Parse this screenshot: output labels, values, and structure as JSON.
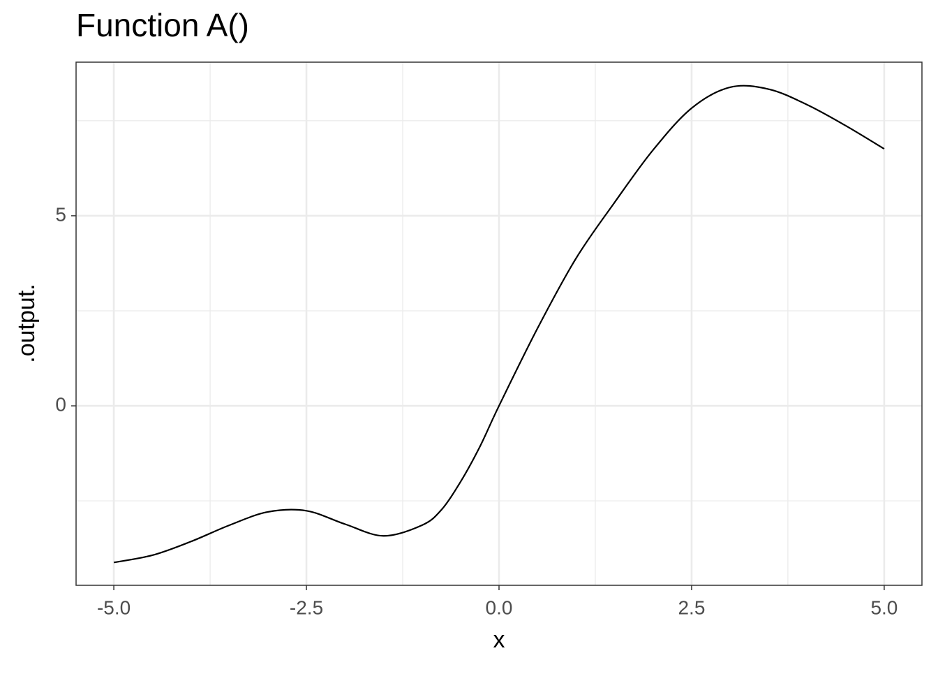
{
  "chart_data": {
    "type": "line",
    "title": "Function A()",
    "x_label": "x",
    "y_label": ".output.",
    "x": [
      -5,
      -4.5,
      -4,
      -3.5,
      -3,
      -2.5,
      -2,
      -1.5,
      -1,
      -0.75,
      -0.5,
      -0.25,
      0,
      0.5,
      1,
      1.5,
      2,
      2.5,
      3,
      3.5,
      4,
      4.5,
      5
    ],
    "series": [
      {
        "color": "#000000",
        "values": [
          -4.12,
          -3.93,
          -3.57,
          -3.14,
          -2.79,
          -2.76,
          -3.11,
          -3.42,
          -3.14,
          -2.74,
          -2.0,
          -1.08,
          0,
          2.04,
          3.88,
          5.35,
          6.73,
          7.83,
          8.38,
          8.33,
          7.92,
          7.37,
          6.76
        ]
      }
    ],
    "xlim": [
      -5.49,
      5.49
    ],
    "ylim": [
      -4.72,
      9.04
    ],
    "xticks": [
      {
        "value": -5,
        "label": "-5.0"
      },
      {
        "value": -2.5,
        "label": "-2.5"
      },
      {
        "value": 0,
        "label": "0.0"
      },
      {
        "value": 2.5,
        "label": "2.5"
      },
      {
        "value": 5,
        "label": "5.0"
      }
    ],
    "yticks": [
      0,
      5
    ],
    "x_minor_grid": [
      -3.75,
      -1.25,
      1.25,
      3.75
    ],
    "y_minor_grid": [
      -2.5,
      2.5,
      7.5
    ],
    "grid": true
  }
}
